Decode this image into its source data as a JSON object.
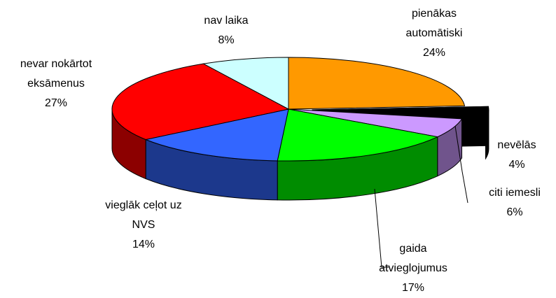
{
  "chart_data": {
    "type": "pie3d",
    "categories": [
      "pienākas automātiski",
      "nevēlās",
      "citi iemesli",
      "gaida atvieglojumus",
      "vieglāk ceļot uz NVS",
      "nevar nokārtot eksāmenus",
      "nav laika"
    ],
    "values": [
      24,
      4,
      6,
      17,
      14,
      27,
      8
    ],
    "value_labels": [
      "24%",
      "4%",
      "6%",
      "17%",
      "14%",
      "27%",
      "8%"
    ],
    "colors": [
      "#ff9900",
      "#000000",
      "#cc99ff",
      "#00ff00",
      "#3366ff",
      "#ff0000",
      "#ccffff"
    ]
  }
}
